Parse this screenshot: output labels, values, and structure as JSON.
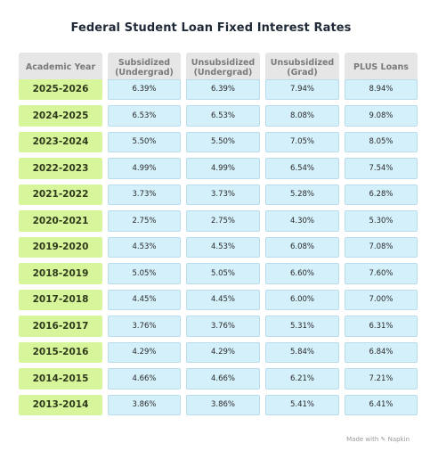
{
  "title": "Federal Student Loan Fixed Interest Rates",
  "headers": [
    "Academic Year",
    "Subsidized (Undergrad)",
    "Unsubsidized (Undergrad)",
    "Unsubsidized (Grad)",
    "PLUS Loans"
  ],
  "rows": [
    {
      "year": "2025-2026",
      "values": [
        "6.39%",
        "6.39%",
        "7.94%",
        "8.94%"
      ]
    },
    {
      "year": "2024-2025",
      "values": [
        "6.53%",
        "6.53%",
        "8.08%",
        "9.08%"
      ]
    },
    {
      "year": "2023-2024",
      "values": [
        "5.50%",
        "5.50%",
        "7.05%",
        "8.05%"
      ]
    },
    {
      "year": "2022-2023",
      "values": [
        "4.99%",
        "4.99%",
        "6.54%",
        "7.54%"
      ]
    },
    {
      "year": "2021-2022",
      "values": [
        "3.73%",
        "3.73%",
        "5.28%",
        "6.28%"
      ]
    },
    {
      "year": "2020-2021",
      "values": [
        "2.75%",
        "2.75%",
        "4.30%",
        "5.30%"
      ]
    },
    {
      "year": "2019-2020",
      "values": [
        "4.53%",
        "4.53%",
        "6.08%",
        "7.08%"
      ]
    },
    {
      "year": "2018-2019",
      "values": [
        "5.05%",
        "5.05%",
        "6.60%",
        "7.60%"
      ]
    },
    {
      "year": "2017-2018",
      "values": [
        "4.45%",
        "4.45%",
        "6.00%",
        "7.00%"
      ]
    },
    {
      "year": "2016-2017",
      "values": [
        "3.76%",
        "3.76%",
        "5.31%",
        "6.31%"
      ]
    },
    {
      "year": "2015-2016",
      "values": [
        "4.29%",
        "4.29%",
        "5.84%",
        "6.84%"
      ]
    },
    {
      "year": "2014-2015",
      "values": [
        "4.66%",
        "4.66%",
        "6.21%",
        "7.21%"
      ]
    },
    {
      "year": "2013-2014",
      "values": [
        "3.86%",
        "3.86%",
        "5.41%",
        "6.41%"
      ]
    }
  ],
  "footer": "Made with ✎ Napkin",
  "colors": {
    "header_bg": "#e6e6e6",
    "year_bg": "#d7f59a",
    "cell_bg": "#d4f0fb"
  }
}
